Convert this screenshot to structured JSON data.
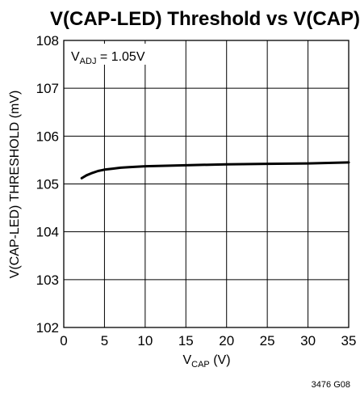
{
  "chart_data": {
    "type": "line",
    "title": "V(CAP-LED) Threshold vs V(CAP)",
    "xlabel": {
      "main": "V",
      "sub": "CAP",
      "unit": " (V)"
    },
    "ylabel": "V(CAP-LED) THRESHOLD (mV)",
    "xlim": [
      0,
      35
    ],
    "ylim": [
      102,
      108
    ],
    "x_ticks": [
      "0",
      "5",
      "10",
      "15",
      "20",
      "25",
      "30",
      "35"
    ],
    "y_ticks": [
      "102",
      "103",
      "104",
      "105",
      "106",
      "107",
      "108"
    ],
    "grid": true,
    "annotation": {
      "main": "V",
      "sub": "ADJ",
      "rest": " = 1.05V"
    },
    "figure_id": "3476 G08",
    "series": [
      {
        "x": [
          2.2,
          2.8,
          3.5,
          4.2,
          5,
          6,
          7,
          8,
          10,
          12.5,
          15,
          20,
          25,
          30,
          35
        ],
        "y": [
          105.12,
          105.18,
          105.23,
          105.27,
          105.3,
          105.32,
          105.34,
          105.35,
          105.37,
          105.38,
          105.39,
          105.41,
          105.42,
          105.43,
          105.45
        ]
      }
    ]
  }
}
